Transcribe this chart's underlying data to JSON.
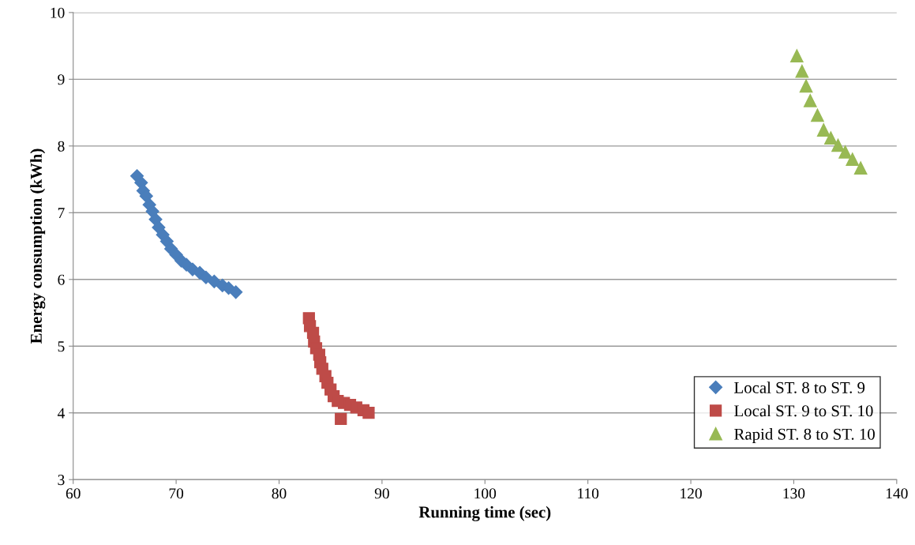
{
  "chart_data": {
    "type": "scatter",
    "xlabel": "Running time (sec)",
    "ylabel": "Energy consumption (kWh)",
    "xlim": [
      60,
      140
    ],
    "xticks": [
      60,
      70,
      80,
      90,
      100,
      110,
      120,
      130,
      140
    ],
    "ylim": [
      3,
      10
    ],
    "yticks": [
      3,
      4,
      5,
      6,
      7,
      8,
      9,
      10
    ],
    "grid": "y",
    "legend": "bottom right",
    "series": [
      {
        "name": "Local ST. 8 to ST. 9",
        "color": "#4a7ebb",
        "marker": "diamond",
        "x": [
          66.2,
          66.6,
          66.8,
          67.1,
          67.4,
          67.7,
          68.0,
          68.3,
          68.7,
          69.1,
          69.5,
          70.0,
          70.5,
          71.0,
          71.6,
          72.3,
          72.9,
          73.7,
          74.5,
          75.1,
          75.8
        ],
        "values": [
          7.55,
          7.45,
          7.33,
          7.25,
          7.12,
          7.02,
          6.9,
          6.78,
          6.67,
          6.57,
          6.46,
          6.37,
          6.28,
          6.22,
          6.15,
          6.1,
          6.03,
          5.97,
          5.91,
          5.87,
          5.81
        ]
      },
      {
        "name": "Local ST. 9 to ST. 10",
        "color": "#be4b48",
        "marker": "square",
        "x": [
          82.9,
          83.0,
          83.3,
          83.4,
          83.6,
          83.9,
          84.0,
          84.2,
          84.5,
          84.7,
          85.0,
          85.3,
          85.7,
          86.3,
          86.9,
          87.5,
          88.2,
          88.7,
          86.0
        ],
        "values": [
          5.42,
          5.3,
          5.2,
          5.07,
          4.97,
          4.87,
          4.76,
          4.66,
          4.55,
          4.45,
          4.35,
          4.25,
          4.18,
          4.15,
          4.12,
          4.08,
          4.04,
          4.0,
          3.91
        ]
      },
      {
        "name": "Rapid ST. 8 to ST. 10",
        "color": "#98b954",
        "marker": "triangle",
        "x": [
          130.3,
          130.8,
          131.2,
          131.6,
          132.3,
          132.9,
          133.6,
          134.3,
          135.0,
          135.7,
          136.5
        ],
        "values": [
          9.35,
          9.12,
          8.9,
          8.68,
          8.46,
          8.24,
          8.12,
          8.01,
          7.91,
          7.8,
          7.67
        ]
      }
    ]
  }
}
